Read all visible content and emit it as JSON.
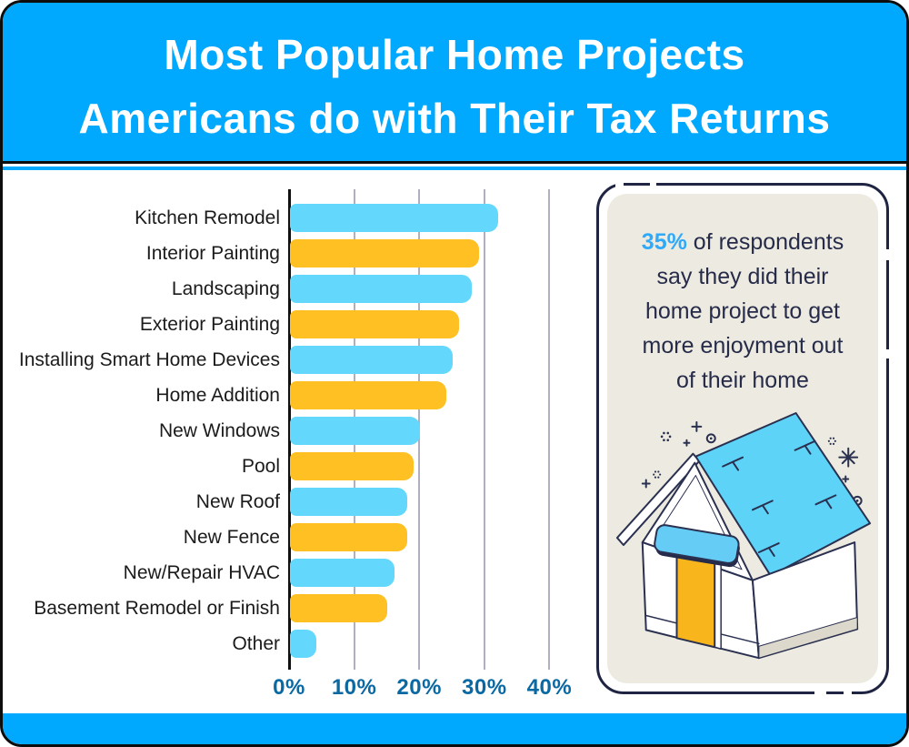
{
  "title": {
    "line1": "Most Popular Home Projects",
    "line2": "Americans do with Their Tax Returns"
  },
  "chart_data": {
    "type": "bar",
    "orientation": "horizontal",
    "title": "Most Popular Home Projects Americans do with Their Tax Returns",
    "xlabel": "",
    "ylabel": "",
    "xlim": [
      0,
      45
    ],
    "grid": "vertical",
    "categories": [
      "Kitchen Remodel",
      "Interior Painting",
      "Landscaping",
      "Exterior Painting",
      "Installing Smart Home Devices",
      "Home Addition",
      "New Windows",
      "Pool",
      "New Roof",
      "New Fence",
      "New/Repair HVAC",
      "Basement Remodel or Finish",
      "Other"
    ],
    "values": [
      32,
      29,
      28,
      26,
      25,
      24,
      20,
      19,
      18,
      18,
      16,
      15,
      4
    ],
    "unit": "%",
    "bar_colors": [
      "#63D8FC",
      "#FFC024"
    ],
    "x_ticks": {
      "labels": [
        "0%",
        "10%",
        "20%",
        "30%",
        "40%"
      ],
      "values": [
        0,
        10,
        20,
        30,
        40
      ]
    }
  },
  "callout": {
    "highlight": "35%",
    "line1_rest": "of respondents",
    "lines": [
      "say they did their",
      "home project to get",
      "more enjoyment out",
      "of their home"
    ],
    "illustration": "isometric-house"
  },
  "colors": {
    "header_bg": "#00A8FE",
    "footer_bg": "#00A8FE",
    "bar_blue": "#63D8FC",
    "bar_orange": "#FFC024",
    "axis": "#111111",
    "gridline": "#B0AFC0",
    "tick_label": "#0A68A2",
    "category_label": "#1B1B1B",
    "callout_bg": "#EDEBE1",
    "callout_border": "#1E2442",
    "callout_text": "#262B49",
    "highlight_blue": "#2FA9F9",
    "house_roof": "#5ED3F8",
    "house_door": "#F8B61C",
    "house_sign": "#65CDF5"
  }
}
